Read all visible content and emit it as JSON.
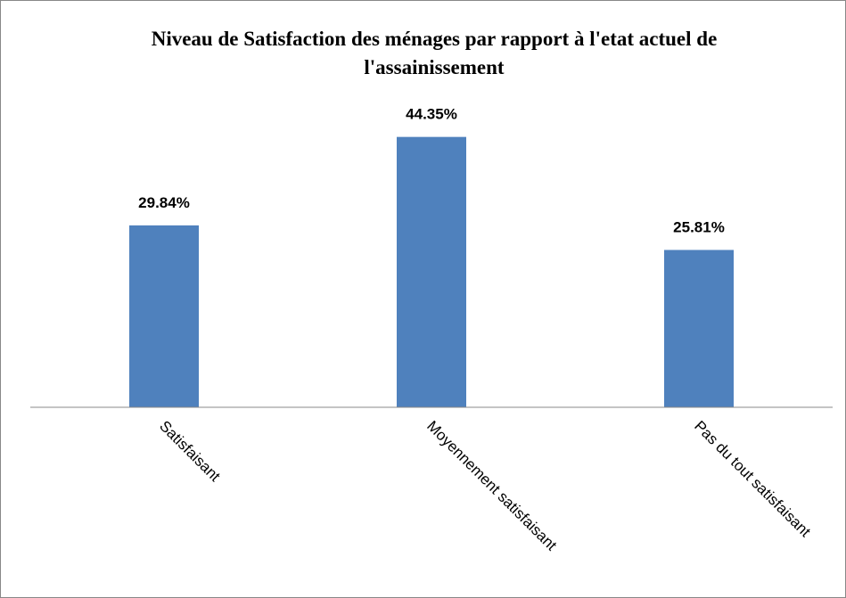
{
  "chart_data": {
    "type": "bar",
    "title": "Niveau de Satisfaction des ménages par rapport à l'etat actuel de l'assainissement",
    "categories": [
      "Satisfaisant",
      "Moyennement satisfaisant",
      "Pas du tout satisfaisant"
    ],
    "values": [
      29.84,
      44.35,
      25.81
    ],
    "value_labels": [
      "29.84%",
      "44.35%",
      "25.81%"
    ],
    "color": "#4f81bd",
    "ylim": [
      0,
      50
    ]
  }
}
